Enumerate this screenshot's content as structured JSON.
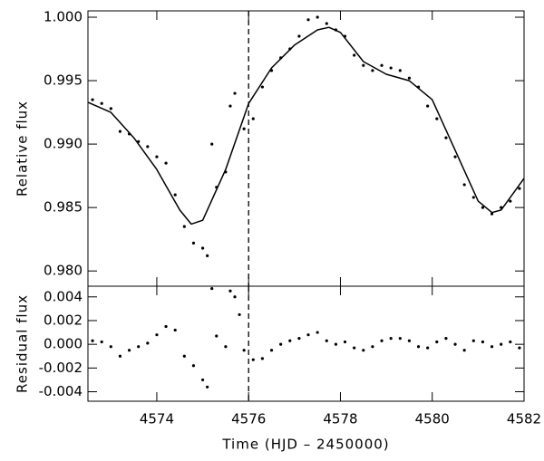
{
  "chart_data": [
    {
      "type": "scatter",
      "ylabel": "Relative flux",
      "xlim": [
        4572.5,
        4582
      ],
      "ylim": [
        0.9788,
        1.0005
      ],
      "yticks": [
        {
          "value": 0.98,
          "label": "0.980"
        },
        {
          "value": 0.985,
          "label": "0.985"
        },
        {
          "value": 0.99,
          "label": "0.990"
        },
        {
          "value": 0.995,
          "label": "0.995"
        },
        {
          "value": 1.0,
          "label": "1.000"
        }
      ],
      "vline": 4576,
      "series": [
        {
          "mode": "markers",
          "color": "#000000",
          "x": [
            4572.6,
            4572.8,
            4573.0,
            4573.2,
            4573.4,
            4573.6,
            4573.8,
            4574.0,
            4574.2,
            4574.4,
            4574.6,
            4574.8,
            4575.0,
            4575.1,
            4575.2,
            4575.3,
            4575.5,
            4575.6,
            4575.7,
            4575.9,
            4576.1,
            4576.3,
            4576.5,
            4576.7,
            4576.9,
            4577.1,
            4577.3,
            4577.5,
            4577.7,
            4577.9,
            4578.1,
            4578.3,
            4578.5,
            4578.7,
            4578.9,
            4579.1,
            4579.3,
            4579.5,
            4579.7,
            4579.9,
            4580.1,
            4580.3,
            4580.5,
            4580.7,
            4580.9,
            4581.1,
            4581.3,
            4581.5,
            4581.7,
            4581.9
          ],
          "values": [
            0.9935,
            0.9932,
            0.9928,
            0.991,
            0.9908,
            0.9902,
            0.9898,
            0.989,
            0.9885,
            0.986,
            0.9835,
            0.9822,
            0.9818,
            0.9812,
            0.99,
            0.9866,
            0.9878,
            0.993,
            0.994,
            0.9912,
            0.992,
            0.9945,
            0.9958,
            0.9968,
            0.9975,
            0.9985,
            0.9998,
            1.0,
            0.9995,
            0.999,
            0.9985,
            0.997,
            0.9962,
            0.9958,
            0.9962,
            0.996,
            0.9958,
            0.9952,
            0.9945,
            0.993,
            0.992,
            0.9905,
            0.989,
            0.9868,
            0.9858,
            0.985,
            0.9845,
            0.985,
            0.9855,
            0.9865
          ]
        },
        {
          "mode": "line",
          "color": "#000000",
          "x": [
            4572.5,
            4573.0,
            4573.5,
            4574.0,
            4574.5,
            4574.75,
            4575.0,
            4575.5,
            4576.0,
            4576.5,
            4577.0,
            4577.5,
            4577.75,
            4578.0,
            4578.5,
            4579.0,
            4579.5,
            4580.0,
            4580.5,
            4581.0,
            4581.3,
            4581.5,
            4582.0
          ],
          "values": [
            0.9933,
            0.9925,
            0.9905,
            0.988,
            0.9848,
            0.9837,
            0.984,
            0.988,
            0.9932,
            0.996,
            0.9978,
            0.999,
            0.9992,
            0.9988,
            0.9965,
            0.9955,
            0.995,
            0.9935,
            0.9895,
            0.9855,
            0.9846,
            0.9848,
            0.9873
          ]
        }
      ]
    },
    {
      "type": "scatter",
      "ylabel": "Residual flux",
      "xlabel": "Time (HJD – 2450000)",
      "xlim": [
        4572.5,
        4582
      ],
      "ylim": [
        -0.0048,
        0.0049
      ],
      "xticks": [
        4574,
        4576,
        4578,
        4580,
        4582
      ],
      "yticks": [
        {
          "value": -0.004,
          "label": "-0.004"
        },
        {
          "value": -0.002,
          "label": "-0.002"
        },
        {
          "value": 0,
          "label": "0.000"
        },
        {
          "value": 0.002,
          "label": "0.002"
        },
        {
          "value": 0.004,
          "label": "0.004"
        }
      ],
      "series": [
        {
          "mode": "markers",
          "color": "#000000",
          "x": [
            4572.6,
            4572.8,
            4573.0,
            4573.2,
            4573.4,
            4573.6,
            4573.8,
            4574.0,
            4574.2,
            4574.4,
            4574.6,
            4574.8,
            4575.0,
            4575.1,
            4575.2,
            4575.3,
            4575.5,
            4575.6,
            4575.7,
            4575.8,
            4575.9,
            4576.1,
            4576.3,
            4576.5,
            4576.7,
            4576.9,
            4577.1,
            4577.3,
            4577.5,
            4577.7,
            4577.9,
            4578.1,
            4578.3,
            4578.5,
            4578.7,
            4578.9,
            4579.1,
            4579.3,
            4579.5,
            4579.7,
            4579.9,
            4580.1,
            4580.3,
            4580.5,
            4580.7,
            4580.9,
            4581.1,
            4581.3,
            4581.5,
            4581.7,
            4581.9
          ],
          "values": [
            0.0003,
            0.0002,
            -0.0002,
            -0.001,
            -0.0005,
            -0.0002,
            0.0001,
            0.0008,
            0.0015,
            0.0012,
            -0.001,
            -0.0018,
            -0.003,
            -0.0036,
            0.0047,
            0.0007,
            -0.0002,
            0.0045,
            0.004,
            0.0025,
            -0.0005,
            -0.0013,
            -0.0012,
            -0.0005,
            0.0,
            0.0003,
            0.0005,
            0.0008,
            0.001,
            0.0003,
            0.0,
            0.0002,
            -0.0003,
            -0.0005,
            -0.0002,
            0.0003,
            0.0005,
            0.0005,
            0.0003,
            -0.0002,
            -0.0003,
            0.0002,
            0.0005,
            0.0,
            -0.0005,
            0.0003,
            0.0002,
            -0.0002,
            0.0,
            0.0002,
            -0.0003
          ]
        }
      ]
    }
  ]
}
